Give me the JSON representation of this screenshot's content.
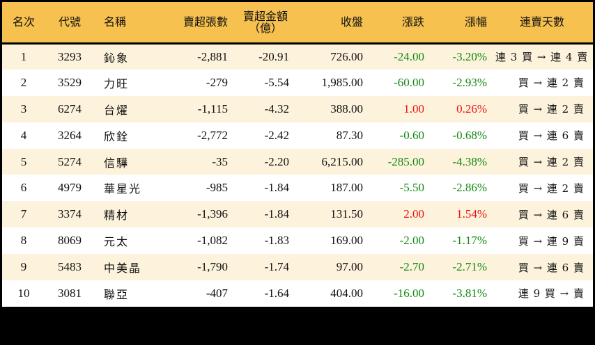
{
  "table": {
    "headers": {
      "rank": "名次",
      "code": "代號",
      "name": "名稱",
      "net_sell_lots": "賣超張數",
      "net_sell_amount_line1": "賣超金額",
      "net_sell_amount_line2": "（億）",
      "close": "收盤",
      "change": "漲跌",
      "change_pct": "漲幅",
      "streak": "連賣天數"
    },
    "rows": [
      {
        "rank": "1",
        "code": "3293",
        "name": "鈊象",
        "net_sell_lots": "-2,881",
        "net_sell_amount": "-20.91",
        "close": "726.00",
        "change": "-24.00",
        "change_pct": "-3.20%",
        "direction": "down",
        "streak": "連 3 買 → 連 4 賣"
      },
      {
        "rank": "2",
        "code": "3529",
        "name": "力旺",
        "net_sell_lots": "-279",
        "net_sell_amount": "-5.54",
        "close": "1,985.00",
        "change": "-60.00",
        "change_pct": "-2.93%",
        "direction": "down",
        "streak": "買 → 連 2 賣"
      },
      {
        "rank": "3",
        "code": "6274",
        "name": "台燿",
        "net_sell_lots": "-1,115",
        "net_sell_amount": "-4.32",
        "close": "388.00",
        "change": "1.00",
        "change_pct": "0.26%",
        "direction": "up",
        "streak": "買 → 連 2 賣"
      },
      {
        "rank": "4",
        "code": "3264",
        "name": "欣銓",
        "net_sell_lots": "-2,772",
        "net_sell_amount": "-2.42",
        "close": "87.30",
        "change": "-0.60",
        "change_pct": "-0.68%",
        "direction": "down",
        "streak": "買 → 連 6 賣"
      },
      {
        "rank": "5",
        "code": "5274",
        "name": "信驊",
        "net_sell_lots": "-35",
        "net_sell_amount": "-2.20",
        "close": "6,215.00",
        "change": "-285.00",
        "change_pct": "-4.38%",
        "direction": "down",
        "streak": "買 → 連 2 賣"
      },
      {
        "rank": "6",
        "code": "4979",
        "name": "華星光",
        "net_sell_lots": "-985",
        "net_sell_amount": "-1.84",
        "close": "187.00",
        "change": "-5.50",
        "change_pct": "-2.86%",
        "direction": "down",
        "streak": "買 → 連 2 賣"
      },
      {
        "rank": "7",
        "code": "3374",
        "name": "精材",
        "net_sell_lots": "-1,396",
        "net_sell_amount": "-1.84",
        "close": "131.50",
        "change": "2.00",
        "change_pct": "1.54%",
        "direction": "up",
        "streak": "買 → 連 6 賣"
      },
      {
        "rank": "8",
        "code": "8069",
        "name": "元太",
        "net_sell_lots": "-1,082",
        "net_sell_amount": "-1.83",
        "close": "169.00",
        "change": "-2.00",
        "change_pct": "-1.17%",
        "direction": "down",
        "streak": "買 → 連 9 賣"
      },
      {
        "rank": "9",
        "code": "5483",
        "name": "中美晶",
        "net_sell_lots": "-1,790",
        "net_sell_amount": "-1.74",
        "close": "97.00",
        "change": "-2.70",
        "change_pct": "-2.71%",
        "direction": "down",
        "streak": "買 → 連 6 賣"
      },
      {
        "rank": "10",
        "code": "3081",
        "name": "聯亞",
        "net_sell_lots": "-407",
        "net_sell_amount": "-1.64",
        "close": "404.00",
        "change": "-16.00",
        "change_pct": "-3.81%",
        "direction": "down",
        "streak": "連 9 買 → 賣"
      }
    ]
  },
  "colors": {
    "header_bg": "#f7c14f",
    "row_odd_bg": "#fdf3dc",
    "row_even_bg": "#ffffff",
    "down": "#118811",
    "up": "#ee1111",
    "border": "#000000"
  }
}
